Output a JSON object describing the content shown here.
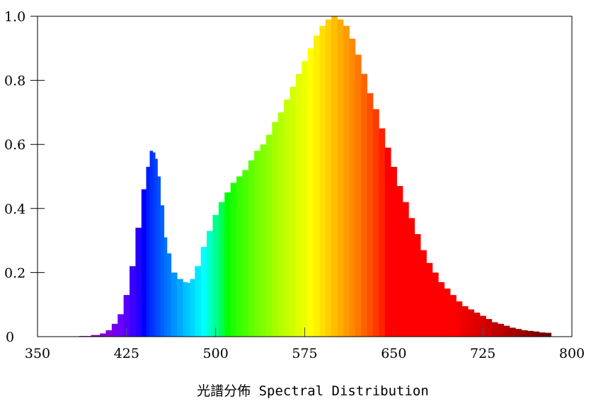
{
  "chart_data": {
    "type": "bar",
    "title": "",
    "xlabel": "光譜分佈 Spectral Distribution",
    "ylabel": "",
    "xlim": [
      350,
      800
    ],
    "ylim": [
      0,
      1.0
    ],
    "grid": false,
    "legend": "none",
    "x_ticks": [
      {
        "value": 350,
        "label": "350"
      },
      {
        "value": 425,
        "label": "425"
      },
      {
        "value": 500,
        "label": "500"
      },
      {
        "value": 575,
        "label": "575"
      },
      {
        "value": 650,
        "label": "650"
      },
      {
        "value": 725,
        "label": "725"
      },
      {
        "value": 800,
        "label": "800"
      }
    ],
    "y_ticks": [
      {
        "value": 0,
        "label": "0"
      },
      {
        "value": 0.2,
        "label": "0.2"
      },
      {
        "value": 0.4,
        "label": "0.4"
      },
      {
        "value": 0.6,
        "label": "0.6"
      },
      {
        "value": 0.8,
        "label": "0.8"
      },
      {
        "value": 1.0,
        "label": "1.0"
      }
    ],
    "series": [
      {
        "x": [
          380,
          390,
          400,
          405,
          410,
          415,
          420,
          425,
          430,
          435,
          440,
          443,
          446,
          448,
          450,
          452,
          455,
          458,
          460,
          465,
          470,
          475,
          477,
          480,
          485,
          490,
          495,
          500,
          505,
          510,
          515,
          520,
          525,
          530,
          535,
          540,
          545,
          550,
          555,
          560,
          565,
          570,
          575,
          580,
          585,
          590,
          595,
          600,
          605,
          610,
          615,
          620,
          625,
          630,
          635,
          640,
          645,
          650,
          655,
          660,
          665,
          670,
          675,
          680,
          685,
          690,
          695,
          700,
          705,
          710,
          715,
          720,
          725,
          730,
          735,
          740,
          745,
          750,
          755,
          760,
          765,
          770,
          775,
          780
        ],
        "values": [
          0.0,
          0.002,
          0.005,
          0.01,
          0.02,
          0.04,
          0.07,
          0.13,
          0.22,
          0.34,
          0.46,
          0.53,
          0.58,
          0.575,
          0.555,
          0.5,
          0.41,
          0.31,
          0.26,
          0.2,
          0.18,
          0.17,
          0.168,
          0.18,
          0.22,
          0.28,
          0.33,
          0.38,
          0.42,
          0.45,
          0.48,
          0.5,
          0.52,
          0.55,
          0.58,
          0.6,
          0.63,
          0.67,
          0.7,
          0.74,
          0.78,
          0.82,
          0.86,
          0.9,
          0.94,
          0.97,
          0.99,
          1.0,
          0.99,
          0.97,
          0.93,
          0.88,
          0.82,
          0.76,
          0.71,
          0.65,
          0.59,
          0.53,
          0.47,
          0.42,
          0.37,
          0.32,
          0.27,
          0.23,
          0.2,
          0.17,
          0.15,
          0.13,
          0.11,
          0.095,
          0.085,
          0.075,
          0.065,
          0.055,
          0.045,
          0.04,
          0.034,
          0.028,
          0.024,
          0.02,
          0.018,
          0.016,
          0.013,
          0.012
        ]
      }
    ]
  }
}
